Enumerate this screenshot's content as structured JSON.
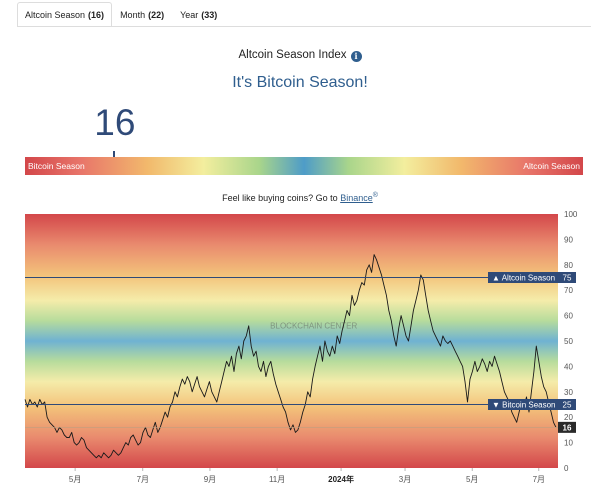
{
  "tabs": [
    {
      "label": "Altcoin Season",
      "count": "(16)"
    },
    {
      "label": "Month",
      "count": "(22)"
    },
    {
      "label": "Year",
      "count": "(33)"
    }
  ],
  "header": {
    "title": "Altcoin Season Index",
    "info_icon": "info-icon",
    "headline": "It's Bitcoin Season!"
  },
  "index": {
    "value": "16",
    "value_num": 16,
    "left_label": "Bitcoin Season",
    "right_label": "Altcoin Season"
  },
  "promo": {
    "text": "Feel like buying coins? Go to ",
    "link": "Binance",
    "ext_mark": "®"
  },
  "colors": {
    "accent": "#2f5e8e",
    "line": "#1a1a1a",
    "bitcoin_red": "#d3474a",
    "mid_blue": "#4e9cc8"
  },
  "chart_data": {
    "type": "line",
    "ylim": [
      0,
      100
    ],
    "y_ticks": [
      "0",
      "10",
      "20",
      "30",
      "40",
      "50",
      "60",
      "70",
      "80",
      "90",
      "100"
    ],
    "x_ticks": [
      {
        "label": "5月",
        "bold": false,
        "pos": 0.094
      },
      {
        "label": "7月",
        "bold": false,
        "pos": 0.221
      },
      {
        "label": "9月",
        "bold": false,
        "pos": 0.347
      },
      {
        "label": "11月",
        "bold": false,
        "pos": 0.473
      },
      {
        "label": "2024年",
        "bold": true,
        "pos": 0.593
      },
      {
        "label": "3月",
        "bold": false,
        "pos": 0.713
      },
      {
        "label": "5月",
        "bold": false,
        "pos": 0.839
      },
      {
        "label": "7月",
        "bold": false,
        "pos": 0.964
      }
    ],
    "thresholds": [
      {
        "value": 75,
        "label": "Altcoin Season",
        "arrow": "▲",
        "value_label": "75"
      },
      {
        "value": 25,
        "label": "Bitcoin Season",
        "arrow": "▼",
        "value_label": "25"
      }
    ],
    "current": {
      "value": 16,
      "label": "16"
    },
    "watermark": "BLOCKCHAIN CENTER",
    "series": [
      {
        "values": [
          27,
          24,
          27,
          25,
          26,
          24,
          27,
          25,
          26,
          20,
          18,
          17,
          16,
          14,
          16,
          15,
          13,
          12,
          12,
          14,
          10,
          9,
          10,
          12,
          11,
          8,
          7,
          6,
          5,
          4,
          5,
          4,
          6,
          5,
          4,
          5,
          7,
          6,
          5,
          6,
          8,
          10,
          9,
          12,
          13,
          11,
          9,
          10,
          14,
          16,
          13,
          12,
          15,
          18,
          14,
          16,
          19,
          22,
          20,
          24,
          26,
          30,
          28,
          32,
          35,
          33,
          36,
          34,
          30,
          33,
          36,
          32,
          30,
          28,
          31,
          34,
          30,
          28,
          26,
          30,
          34,
          38,
          42,
          40,
          44,
          38,
          45,
          48,
          43,
          50,
          52,
          56,
          48,
          44,
          46,
          40,
          38,
          42,
          36,
          40,
          42,
          37,
          33,
          30,
          27,
          24,
          22,
          18,
          15,
          17,
          14,
          15,
          18,
          22,
          25,
          30,
          28,
          35,
          40,
          44,
          48,
          42,
          50,
          46,
          44,
          48,
          45,
          52,
          49,
          54,
          58,
          62,
          60,
          68,
          64,
          66,
          70,
          73,
          72,
          78,
          80,
          77,
          84,
          82,
          79,
          76,
          72,
          68,
          62,
          58,
          52,
          48,
          55,
          60,
          56,
          52,
          50,
          56,
          62,
          66,
          70,
          76,
          74,
          68,
          62,
          58,
          54,
          52,
          50,
          48,
          52,
          50,
          49,
          50,
          48,
          46,
          44,
          42,
          40,
          34,
          26,
          35,
          38,
          42,
          38,
          40,
          43,
          41,
          38,
          42,
          40,
          44,
          41,
          38,
          34,
          30,
          28,
          26,
          22,
          20,
          18,
          22,
          26,
          24,
          28,
          22,
          30,
          38,
          48,
          42,
          36,
          32,
          30,
          26,
          22,
          18,
          16
        ]
      }
    ]
  }
}
